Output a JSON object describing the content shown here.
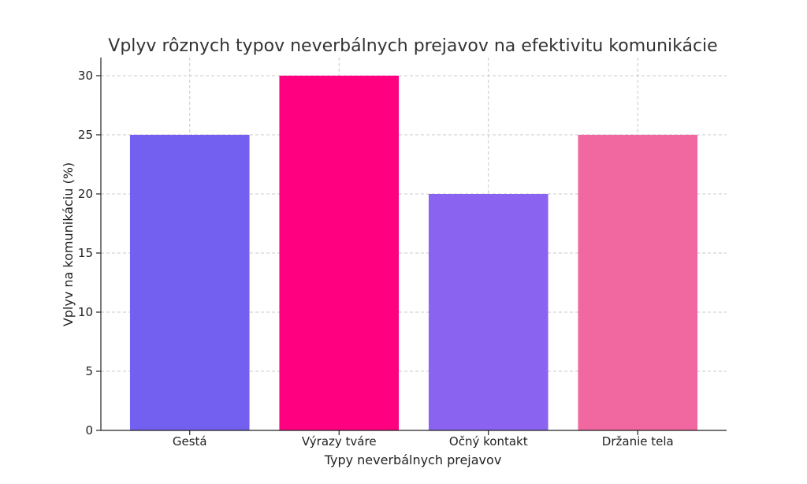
{
  "chart_data": {
    "type": "bar",
    "title": "Vplyv rôznych typov neverbálnych prejavov na efektivitu komunikácie",
    "xlabel": "Typy neverbálnych prejavov",
    "ylabel": "Vplyv na komunikáciu (%)",
    "categories": [
      "Gestá",
      "Výrazy tváre",
      "Očný kontakt",
      "Držanie tela"
    ],
    "values": [
      25,
      30,
      20,
      25
    ],
    "colors": [
      "#7360f0",
      "#ff0080",
      "#8a64f0",
      "#f0689f"
    ],
    "ylim": [
      0,
      30
    ],
    "yticks": [
      0,
      5,
      10,
      15,
      20,
      25,
      30
    ],
    "grid": true
  }
}
